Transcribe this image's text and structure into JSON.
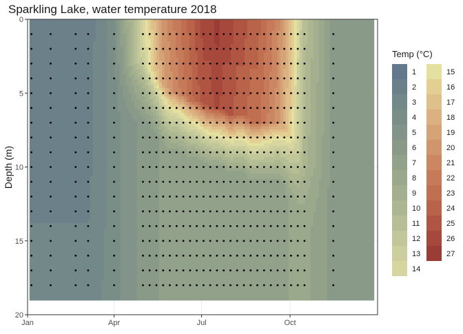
{
  "chart_data": {
    "type": "heatmap",
    "title": "Sparkling Lake, water temperature 2018",
    "xlabel": "",
    "ylabel": "Depth (m)",
    "x_ticks": [
      "Jan",
      "Apr",
      "Jul",
      "Oct"
    ],
    "x_tick_days": [
      1,
      91,
      182,
      274
    ],
    "xlim_days": [
      1,
      365
    ],
    "y_ticks": [
      0,
      5,
      10,
      15,
      20
    ],
    "ylim": [
      20,
      0
    ],
    "y_reversed": true,
    "grid": true,
    "legend_title": "Temp (°C)",
    "legend_placement": "right",
    "legend_levels": [
      1,
      2,
      3,
      4,
      5,
      6,
      7,
      8,
      9,
      10,
      11,
      12,
      13,
      14,
      15,
      16,
      17,
      18,
      19,
      20,
      21,
      22,
      23,
      24,
      25,
      26,
      27
    ],
    "legend_colors": [
      "#61798a",
      "#6b8089",
      "#738889",
      "#7a8e88",
      "#829489",
      "#8a9a89",
      "#92a18a",
      "#9aa88c",
      "#a3af8e",
      "#acb691",
      "#b6be95",
      "#c1c799",
      "#cccf9d",
      "#d7d6a0",
      "#e4e1a0",
      "#e3cf92",
      "#e0c08a",
      "#dbb181",
      "#d6a377",
      "#d0956c",
      "#cb8762",
      "#c67a59",
      "#c06f51",
      "#b9634a",
      "#b05443",
      "#a6483c",
      "#9c3c36"
    ],
    "sample_dates": [
      "Jan 5",
      "Jan 25",
      "Feb 20",
      "Mar 5",
      "Apr 1",
      "May 1",
      "May 8",
      "May 15",
      "May 22",
      "May 29",
      "Jun 5",
      "Jun 12",
      "Jun 19",
      "Jun 26",
      "Jul 3",
      "Jul 10",
      "Jul 17",
      "Jul 24",
      "Jul 31",
      "Aug 7",
      "Aug 14",
      "Aug 21",
      "Aug 28",
      "Sep 4",
      "Sep 11",
      "Sep 18",
      "Sep 25",
      "Oct 2",
      "Oct 9",
      "Oct 16",
      "Nov 15"
    ],
    "sample_days": [
      5,
      25,
      51,
      64,
      91,
      121,
      128,
      135,
      142,
      149,
      156,
      163,
      170,
      177,
      184,
      191,
      198,
      205,
      212,
      219,
      226,
      233,
      240,
      247,
      254,
      261,
      268,
      275,
      282,
      289,
      319
    ],
    "sample_depths": [
      1,
      2,
      3,
      4,
      5,
      6,
      7,
      8,
      9,
      10,
      11,
      12,
      13,
      14,
      15,
      16,
      17,
      18
    ],
    "surface_temp_c": [
      2,
      2,
      2,
      2,
      4,
      14,
      16,
      18,
      20,
      21,
      22,
      23,
      24,
      25,
      26,
      26,
      27,
      26,
      26,
      25,
      25,
      24,
      24,
      23,
      22,
      21,
      19,
      17,
      14,
      11,
      6
    ],
    "thermocline_depth_m": [
      0,
      0,
      0,
      0,
      0,
      3,
      3.5,
      4,
      4.5,
      5,
      5,
      5.2,
      5.5,
      5.5,
      5.8,
      6,
      6,
      6.2,
      6.5,
      6.5,
      6.5,
      7,
      7,
      7,
      7,
      7,
      7.5,
      8,
      9,
      10,
      0
    ],
    "bottom_temp_c": [
      3,
      3,
      3,
      3,
      4,
      6,
      6,
      6,
      7,
      7,
      7,
      7,
      7,
      7,
      7,
      7,
      7,
      7,
      7,
      7,
      7,
      7,
      7,
      7,
      7,
      7,
      7,
      8,
      8,
      8,
      6
    ]
  }
}
